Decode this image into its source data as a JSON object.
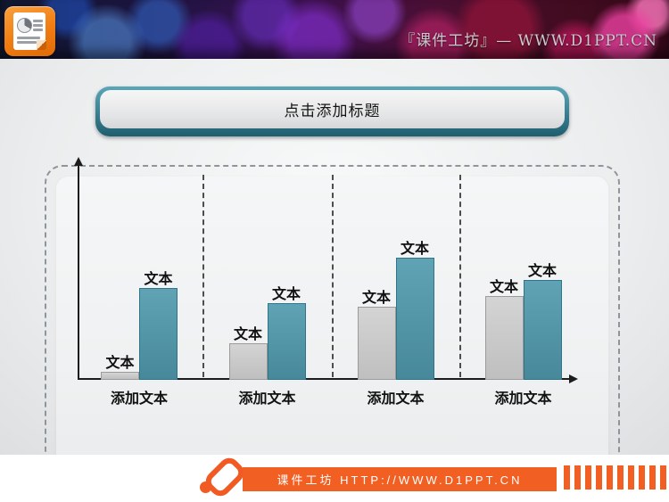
{
  "banner": {
    "brand_text": "『课件工坊』— WWW.D1PPT.CN",
    "ppt_icon": "powerpoint-document-icon"
  },
  "slide": {
    "title": "点击添加标题",
    "chart_data": {
      "type": "bar",
      "title": "",
      "xlabel": "",
      "ylabel": "",
      "categories": [
        "添加文本",
        "添加文本",
        "添加文本",
        "添加文本"
      ],
      "series": [
        {
          "name": "series-gray",
          "color": "#c9c9c9",
          "values": [
            9,
            41,
            82,
            94
          ]
        },
        {
          "name": "series-teal",
          "color": "#4f96a8",
          "values": [
            103,
            86,
            137,
            112
          ]
        }
      ],
      "bar_label": "文本",
      "value_units": "relative bar height (px), no numeric axis shown",
      "axes": {
        "x_arrow": true,
        "y_arrow": true,
        "numeric_ticks": false
      },
      "grid": "dashed vertical separators between category groups",
      "legend": "none"
    }
  },
  "footer": {
    "brand_text": "课件工坊 HTTP://WWW.D1PPT.CN",
    "pen_icon": "pen-icon",
    "stripes": "barcode-stripes"
  },
  "colors": {
    "accent_teal": "#4f96a8",
    "accent_teal_dark": "#1f5e6e",
    "bar_gray": "#c9c9c9",
    "footer_orange": "#f15f22",
    "banner_text": "#c9c9cc",
    "axis_black": "#1c1c1c"
  }
}
